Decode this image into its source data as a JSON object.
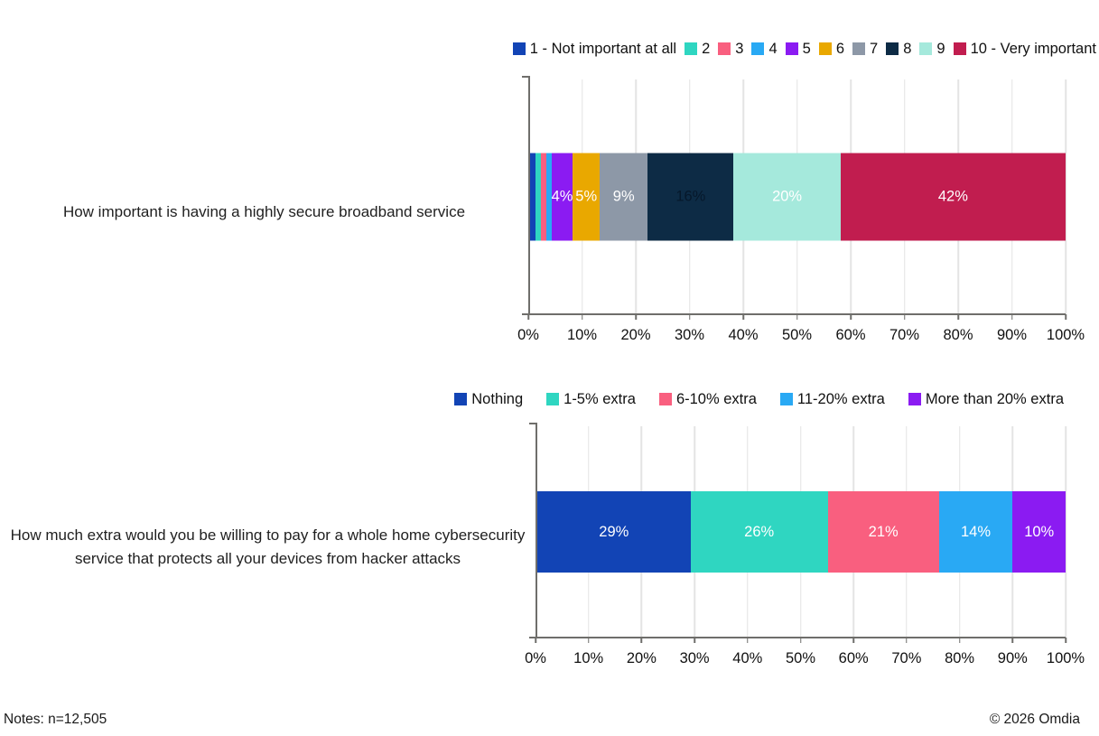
{
  "colors": {
    "axis": "#6F6E6B",
    "grid": "#E4E4E4",
    "background": "#FFFFFF"
  },
  "footer": {
    "notes": "Notes: n=12,505",
    "copyright": "© 2026 Omdia"
  },
  "chart_data": [
    {
      "type": "bar",
      "subtype": "horizontal-stacked",
      "category": "How important is having a highly secure broadband service",
      "legend_position": "top",
      "grid": true,
      "axis": {
        "xlim": [
          0,
          100
        ],
        "xticks": [
          "0%",
          "10%",
          "20%",
          "30%",
          "40%",
          "50%",
          "60%",
          "70%",
          "80%",
          "90%",
          "100%"
        ]
      },
      "series": [
        {
          "name": "1 - Not important at all",
          "value": 1,
          "color": "#1244B5",
          "label": "",
          "label_color": "#FFFFFF"
        },
        {
          "name": "2",
          "value": 1,
          "color": "#2FD6C1",
          "label": "",
          "label_color": "#FFFFFF"
        },
        {
          "name": "3",
          "value": 1,
          "color": "#F95F7F",
          "label": "",
          "label_color": "#FFFFFF"
        },
        {
          "name": "4",
          "value": 1,
          "color": "#29A9F4",
          "label": "",
          "label_color": "#FFFFFF"
        },
        {
          "name": "5",
          "value": 4,
          "color": "#8B1BF2",
          "label": "4%",
          "label_color": "#FFFFFF"
        },
        {
          "name": "6",
          "value": 5,
          "color": "#E9A800",
          "label": "5%",
          "label_color": "#FFFFFF"
        },
        {
          "name": "7",
          "value": 9,
          "color": "#8D98A7",
          "label": "9%",
          "label_color": "#FFFFFF"
        },
        {
          "name": "8",
          "value": 16,
          "color": "#0D2B45",
          "label": "16%",
          "label_color": "#06182B"
        },
        {
          "name": "9",
          "value": 20,
          "color": "#A5E9DC",
          "label": "20%",
          "label_color": "#FFFFFF"
        },
        {
          "name": "10 - Very important",
          "value": 42,
          "color": "#C11D4F",
          "label": "42%",
          "label_color": "#FFFFFF"
        }
      ]
    },
    {
      "type": "bar",
      "subtype": "horizontal-stacked",
      "category": "How much extra would you be willing to pay for a whole home cybersecurity service that protects all your devices from hacker attacks",
      "legend_position": "top",
      "grid": true,
      "axis": {
        "xlim": [
          0,
          100
        ],
        "xticks": [
          "0%",
          "10%",
          "20%",
          "30%",
          "40%",
          "50%",
          "60%",
          "70%",
          "80%",
          "90%",
          "100%"
        ]
      },
      "series": [
        {
          "name": "Nothing",
          "value": 29,
          "color": "#1244B5",
          "label": "29%",
          "label_color": "#FFFFFF"
        },
        {
          "name": "1-5% extra",
          "value": 26,
          "color": "#2FD6C1",
          "label": "26%",
          "label_color": "#FFFFFF"
        },
        {
          "name": "6-10% extra",
          "value": 21,
          "color": "#F95F7F",
          "label": "21%",
          "label_color": "#FFFFFF"
        },
        {
          "name": "11-20% extra",
          "value": 14,
          "color": "#29A9F4",
          "label": "14%",
          "label_color": "#FFFFFF"
        },
        {
          "name": "More than 20% extra",
          "value": 10,
          "color": "#8B1BF2",
          "label": "10%",
          "label_color": "#FFFFFF"
        }
      ]
    }
  ]
}
